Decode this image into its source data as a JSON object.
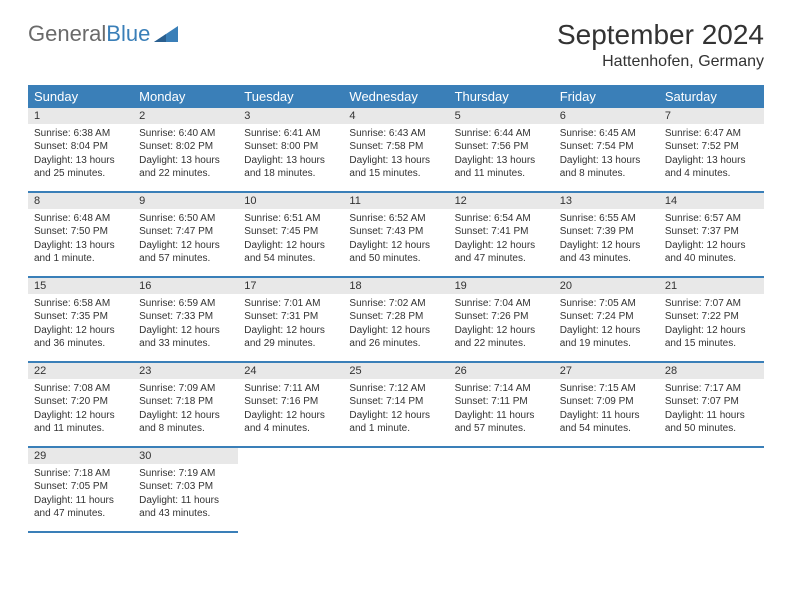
{
  "logo": {
    "part1": "General",
    "part2": "Blue"
  },
  "title": "September 2024",
  "location": "Hattenhofen, Germany",
  "colors": {
    "header_bg": "#3a7fb8",
    "daynum_bg": "#e8e8e8",
    "text": "#333333",
    "logo_gray": "#6a6a6a"
  },
  "fonts": {
    "title_size": 28,
    "location_size": 16,
    "th_size": 13,
    "cell_size": 10
  },
  "days_of_week": [
    "Sunday",
    "Monday",
    "Tuesday",
    "Wednesday",
    "Thursday",
    "Friday",
    "Saturday"
  ],
  "weeks": [
    [
      {
        "n": "1",
        "sunrise": "Sunrise: 6:38 AM",
        "sunset": "Sunset: 8:04 PM",
        "daylight": "Daylight: 13 hours and 25 minutes."
      },
      {
        "n": "2",
        "sunrise": "Sunrise: 6:40 AM",
        "sunset": "Sunset: 8:02 PM",
        "daylight": "Daylight: 13 hours and 22 minutes."
      },
      {
        "n": "3",
        "sunrise": "Sunrise: 6:41 AM",
        "sunset": "Sunset: 8:00 PM",
        "daylight": "Daylight: 13 hours and 18 minutes."
      },
      {
        "n": "4",
        "sunrise": "Sunrise: 6:43 AM",
        "sunset": "Sunset: 7:58 PM",
        "daylight": "Daylight: 13 hours and 15 minutes."
      },
      {
        "n": "5",
        "sunrise": "Sunrise: 6:44 AM",
        "sunset": "Sunset: 7:56 PM",
        "daylight": "Daylight: 13 hours and 11 minutes."
      },
      {
        "n": "6",
        "sunrise": "Sunrise: 6:45 AM",
        "sunset": "Sunset: 7:54 PM",
        "daylight": "Daylight: 13 hours and 8 minutes."
      },
      {
        "n": "7",
        "sunrise": "Sunrise: 6:47 AM",
        "sunset": "Sunset: 7:52 PM",
        "daylight": "Daylight: 13 hours and 4 minutes."
      }
    ],
    [
      {
        "n": "8",
        "sunrise": "Sunrise: 6:48 AM",
        "sunset": "Sunset: 7:50 PM",
        "daylight": "Daylight: 13 hours and 1 minute."
      },
      {
        "n": "9",
        "sunrise": "Sunrise: 6:50 AM",
        "sunset": "Sunset: 7:47 PM",
        "daylight": "Daylight: 12 hours and 57 minutes."
      },
      {
        "n": "10",
        "sunrise": "Sunrise: 6:51 AM",
        "sunset": "Sunset: 7:45 PM",
        "daylight": "Daylight: 12 hours and 54 minutes."
      },
      {
        "n": "11",
        "sunrise": "Sunrise: 6:52 AM",
        "sunset": "Sunset: 7:43 PM",
        "daylight": "Daylight: 12 hours and 50 minutes."
      },
      {
        "n": "12",
        "sunrise": "Sunrise: 6:54 AM",
        "sunset": "Sunset: 7:41 PM",
        "daylight": "Daylight: 12 hours and 47 minutes."
      },
      {
        "n": "13",
        "sunrise": "Sunrise: 6:55 AM",
        "sunset": "Sunset: 7:39 PM",
        "daylight": "Daylight: 12 hours and 43 minutes."
      },
      {
        "n": "14",
        "sunrise": "Sunrise: 6:57 AM",
        "sunset": "Sunset: 7:37 PM",
        "daylight": "Daylight: 12 hours and 40 minutes."
      }
    ],
    [
      {
        "n": "15",
        "sunrise": "Sunrise: 6:58 AM",
        "sunset": "Sunset: 7:35 PM",
        "daylight": "Daylight: 12 hours and 36 minutes."
      },
      {
        "n": "16",
        "sunrise": "Sunrise: 6:59 AM",
        "sunset": "Sunset: 7:33 PM",
        "daylight": "Daylight: 12 hours and 33 minutes."
      },
      {
        "n": "17",
        "sunrise": "Sunrise: 7:01 AM",
        "sunset": "Sunset: 7:31 PM",
        "daylight": "Daylight: 12 hours and 29 minutes."
      },
      {
        "n": "18",
        "sunrise": "Sunrise: 7:02 AM",
        "sunset": "Sunset: 7:28 PM",
        "daylight": "Daylight: 12 hours and 26 minutes."
      },
      {
        "n": "19",
        "sunrise": "Sunrise: 7:04 AM",
        "sunset": "Sunset: 7:26 PM",
        "daylight": "Daylight: 12 hours and 22 minutes."
      },
      {
        "n": "20",
        "sunrise": "Sunrise: 7:05 AM",
        "sunset": "Sunset: 7:24 PM",
        "daylight": "Daylight: 12 hours and 19 minutes."
      },
      {
        "n": "21",
        "sunrise": "Sunrise: 7:07 AM",
        "sunset": "Sunset: 7:22 PM",
        "daylight": "Daylight: 12 hours and 15 minutes."
      }
    ],
    [
      {
        "n": "22",
        "sunrise": "Sunrise: 7:08 AM",
        "sunset": "Sunset: 7:20 PM",
        "daylight": "Daylight: 12 hours and 11 minutes."
      },
      {
        "n": "23",
        "sunrise": "Sunrise: 7:09 AM",
        "sunset": "Sunset: 7:18 PM",
        "daylight": "Daylight: 12 hours and 8 minutes."
      },
      {
        "n": "24",
        "sunrise": "Sunrise: 7:11 AM",
        "sunset": "Sunset: 7:16 PM",
        "daylight": "Daylight: 12 hours and 4 minutes."
      },
      {
        "n": "25",
        "sunrise": "Sunrise: 7:12 AM",
        "sunset": "Sunset: 7:14 PM",
        "daylight": "Daylight: 12 hours and 1 minute."
      },
      {
        "n": "26",
        "sunrise": "Sunrise: 7:14 AM",
        "sunset": "Sunset: 7:11 PM",
        "daylight": "Daylight: 11 hours and 57 minutes."
      },
      {
        "n": "27",
        "sunrise": "Sunrise: 7:15 AM",
        "sunset": "Sunset: 7:09 PM",
        "daylight": "Daylight: 11 hours and 54 minutes."
      },
      {
        "n": "28",
        "sunrise": "Sunrise: 7:17 AM",
        "sunset": "Sunset: 7:07 PM",
        "daylight": "Daylight: 11 hours and 50 minutes."
      }
    ],
    [
      {
        "n": "29",
        "sunrise": "Sunrise: 7:18 AM",
        "sunset": "Sunset: 7:05 PM",
        "daylight": "Daylight: 11 hours and 47 minutes."
      },
      {
        "n": "30",
        "sunrise": "Sunrise: 7:19 AM",
        "sunset": "Sunset: 7:03 PM",
        "daylight": "Daylight: 11 hours and 43 minutes."
      },
      null,
      null,
      null,
      null,
      null
    ]
  ]
}
